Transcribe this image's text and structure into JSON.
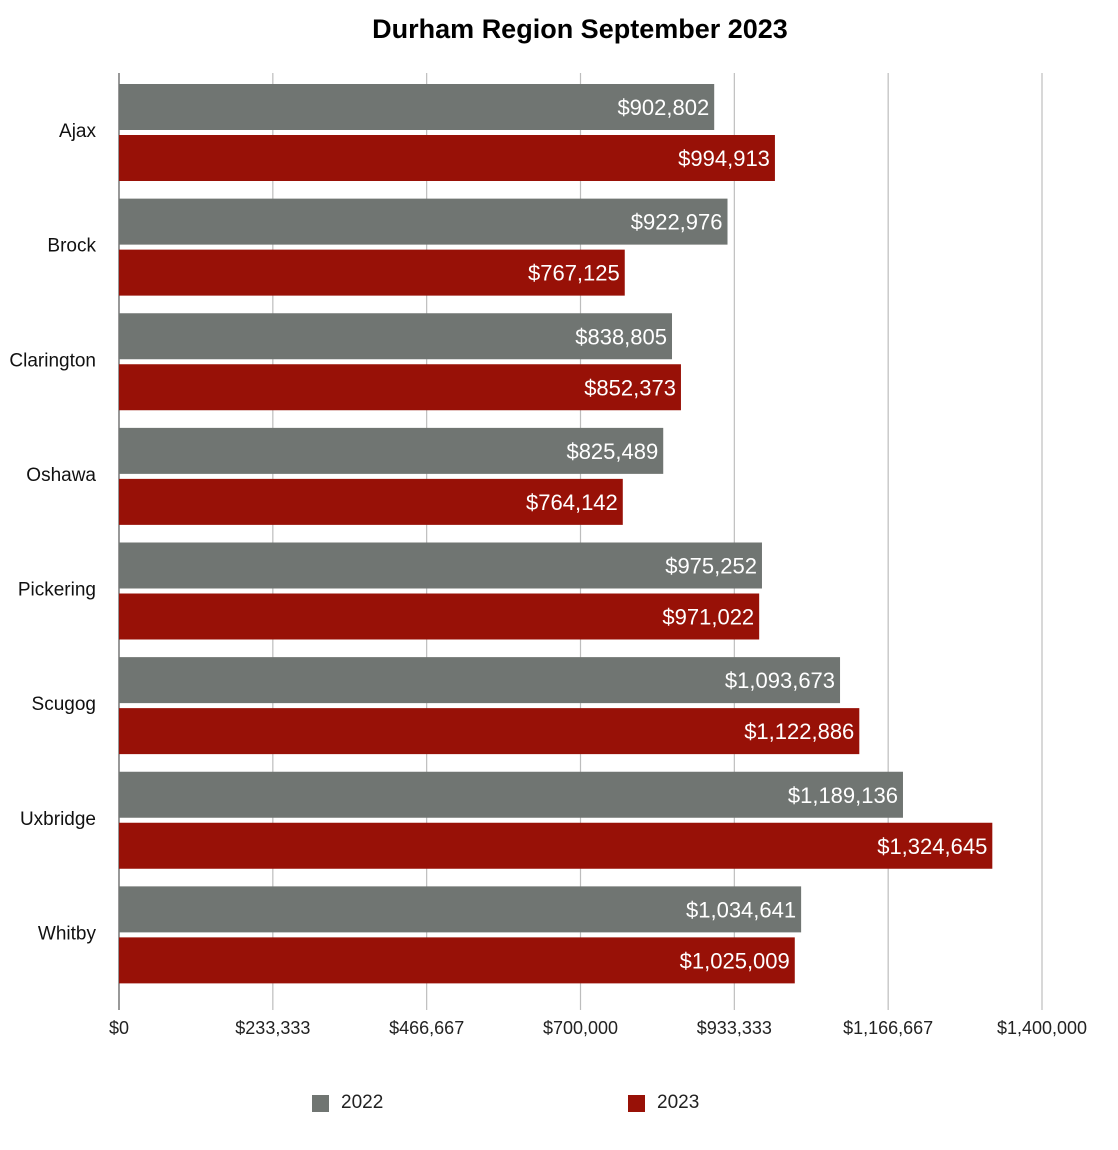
{
  "chart_data": {
    "type": "bar",
    "orientation": "horizontal",
    "title": "Durham Region September 2023",
    "categories": [
      "Ajax",
      "Brock",
      "Clarington",
      "Oshawa",
      "Pickering",
      "Scugog",
      "Uxbridge",
      "Whitby"
    ],
    "series": [
      {
        "name": "2022",
        "color": "#707572",
        "values": [
          902802,
          922976,
          838805,
          825489,
          975252,
          1093673,
          1189136,
          1034641
        ],
        "labels": [
          "$902,802",
          "$922,976",
          "$838,805",
          "$825,489",
          "$975,252",
          "$1,093,673",
          "$1,189,136",
          "$1,034,641"
        ]
      },
      {
        "name": "2023",
        "color": "#981107",
        "values": [
          994913,
          767125,
          852373,
          764142,
          971022,
          1122886,
          1324645,
          1025009
        ],
        "labels": [
          "$994,913",
          "$767,125",
          "$852,373",
          "$764,142",
          "$971,022",
          "$1,122,886",
          "$1,324,645",
          "$1,025,009"
        ]
      }
    ],
    "xlim": [
      0,
      1400000
    ],
    "xticks": [
      0,
      233333,
      466667,
      700000,
      933333,
      1166667,
      1400000
    ],
    "xtick_labels": [
      "$0",
      "$233,333",
      "$466,667",
      "$700,000",
      "$933,333",
      "$1,166,667",
      "$1,400,000"
    ],
    "grid": true,
    "legend": "bottom"
  }
}
